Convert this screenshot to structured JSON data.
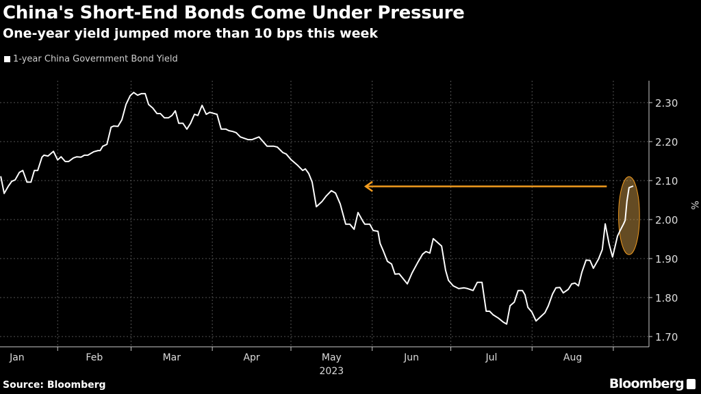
{
  "chart_data": {
    "type": "line",
    "title": "China's Short-End Bonds Come Under Pressure",
    "subtitle": "One-year yield jumped more than 10 bps this week",
    "legend": [
      "1-year China Government Bond Yield"
    ],
    "xlabel": "2023",
    "ylabel": "%",
    "ylim": [
      1.7,
      2.3
    ],
    "yticks": [
      "1.70",
      "1.80",
      "1.90",
      "2.00",
      "2.10",
      "2.20",
      "2.30"
    ],
    "xunit": "day of year 2023",
    "xlim": [
      9,
      256.6
    ],
    "month_boundaries": [
      31,
      59,
      90,
      120,
      151,
      181,
      212,
      243
    ],
    "xticks": [
      {
        "label": "Jan",
        "day": 15.5
      },
      {
        "label": "Feb",
        "day": 45
      },
      {
        "label": "Mar",
        "day": 74.5
      },
      {
        "label": "Apr",
        "day": 105
      },
      {
        "label": "May",
        "day": 135.5
      },
      {
        "label": "Jun",
        "day": 166
      },
      {
        "label": "Jul",
        "day": 196.5
      },
      {
        "label": "Aug",
        "day": 227.5
      }
    ],
    "grid": true,
    "series": [
      {
        "name": "1-year China Government Bond Yield",
        "color": "#ffffff",
        "x": [
          9.3,
          10.6,
          12.2,
          13.5,
          14.8,
          16.4,
          17.7,
          19.3,
          20.8,
          22.1,
          23.4,
          25.0,
          25.8,
          27.3,
          29.4,
          31,
          32.3,
          33.9,
          35.2,
          37.0,
          38.3,
          39.9,
          41.2,
          42.5,
          44.8,
          46.4,
          47.2,
          48.2,
          49.8,
          51.4,
          52.4,
          54.0,
          55.5,
          57.1,
          58.7,
          60.0,
          61.5,
          62.9,
          64.4,
          65.7,
          67.3,
          68.9,
          70.2,
          71.7,
          73.3,
          74.6,
          75.9,
          77.2,
          78.8,
          80.3,
          81.7,
          83.2,
          84.5,
          86.1,
          87.7,
          89.0,
          91.8,
          93.4,
          95.2,
          96.3,
          97.8,
          99.1,
          100.7,
          103.6,
          105.2,
          107.8,
          110.9,
          113.5,
          114.8,
          116.9,
          118.2,
          120.0,
          122.6,
          124.5,
          125.5,
          126.8,
          128.1,
          129.7,
          131.8,
          133.4,
          135.4,
          137.0,
          138.8,
          140.9,
          142.5,
          144.1,
          145.6,
          147.5,
          148.2,
          150.1,
          151.4,
          153.2,
          154.0,
          155.3,
          156.8,
          158.4,
          159.7,
          161.3,
          164.4,
          166.2,
          168.3,
          170.2,
          171.5,
          173.0,
          174.3,
          177.5,
          179.0,
          180.1,
          181.9,
          184.0,
          186.1,
          187.4,
          189.5,
          191.1,
          192.9,
          194.5,
          195.8,
          197.1,
          199.2,
          201.0,
          202.3,
          203.6,
          205.2,
          206.7,
          208.3,
          209.3,
          210.4,
          211.9,
          213.5,
          215.3,
          216.9,
          218.2,
          219.8,
          221.1,
          222.6,
          223.9,
          225.8,
          227.1,
          228.4,
          229.7,
          231.0,
          232.6,
          234.1,
          235.4,
          237.3,
          238.8,
          239.9,
          241.4,
          242.7,
          244.6,
          245.6,
          246.9,
          247.5,
          248.2,
          249.0,
          250.6
        ],
        "values": [
          2.111,
          2.067,
          2.086,
          2.098,
          2.102,
          2.121,
          2.126,
          2.096,
          2.096,
          2.126,
          2.126,
          2.16,
          2.165,
          2.163,
          2.175,
          2.153,
          2.161,
          2.149,
          2.149,
          2.158,
          2.161,
          2.16,
          2.165,
          2.165,
          2.174,
          2.177,
          2.177,
          2.188,
          2.193,
          2.237,
          2.24,
          2.239,
          2.256,
          2.296,
          2.318,
          2.326,
          2.319,
          2.323,
          2.323,
          2.295,
          2.286,
          2.272,
          2.272,
          2.261,
          2.261,
          2.267,
          2.279,
          2.247,
          2.247,
          2.232,
          2.247,
          2.27,
          2.267,
          2.293,
          2.27,
          2.275,
          2.27,
          2.232,
          2.232,
          2.228,
          2.226,
          2.223,
          2.212,
          2.205,
          2.205,
          2.212,
          2.188,
          2.188,
          2.186,
          2.172,
          2.168,
          2.154,
          2.139,
          2.126,
          2.13,
          2.118,
          2.096,
          2.033,
          2.046,
          2.06,
          2.074,
          2.068,
          2.04,
          1.988,
          1.988,
          1.975,
          2.018,
          1.995,
          1.988,
          1.988,
          1.972,
          1.97,
          1.939,
          1.919,
          1.893,
          1.886,
          1.86,
          1.861,
          1.835,
          1.863,
          1.889,
          1.911,
          1.918,
          1.914,
          1.951,
          1.932,
          1.87,
          1.844,
          1.83,
          1.823,
          1.825,
          1.823,
          1.818,
          1.839,
          1.839,
          1.765,
          1.765,
          1.756,
          1.747,
          1.737,
          1.732,
          1.779,
          1.788,
          1.818,
          1.818,
          1.807,
          1.775,
          1.763,
          1.74,
          1.751,
          1.761,
          1.779,
          1.809,
          1.825,
          1.826,
          1.812,
          1.821,
          1.835,
          1.837,
          1.83,
          1.865,
          1.896,
          1.895,
          1.875,
          1.898,
          1.923,
          1.989,
          1.937,
          1.904,
          1.958,
          1.972,
          1.989,
          1.998,
          2.047,
          2.082,
          2.086
        ]
      }
    ],
    "annotations": [
      {
        "type": "arrow",
        "color": "#f39c1f",
        "y": 2.085,
        "from_day": 240.5,
        "to_day": 148.5
      },
      {
        "type": "ellipse",
        "color": "#f39c1f",
        "center_day": 249,
        "center_value": 2.01,
        "day_radius": 4,
        "value_radius": 0.1
      }
    ]
  },
  "footer": {
    "source": "Source: Bloomberg",
    "brand": "Bloomberg"
  }
}
